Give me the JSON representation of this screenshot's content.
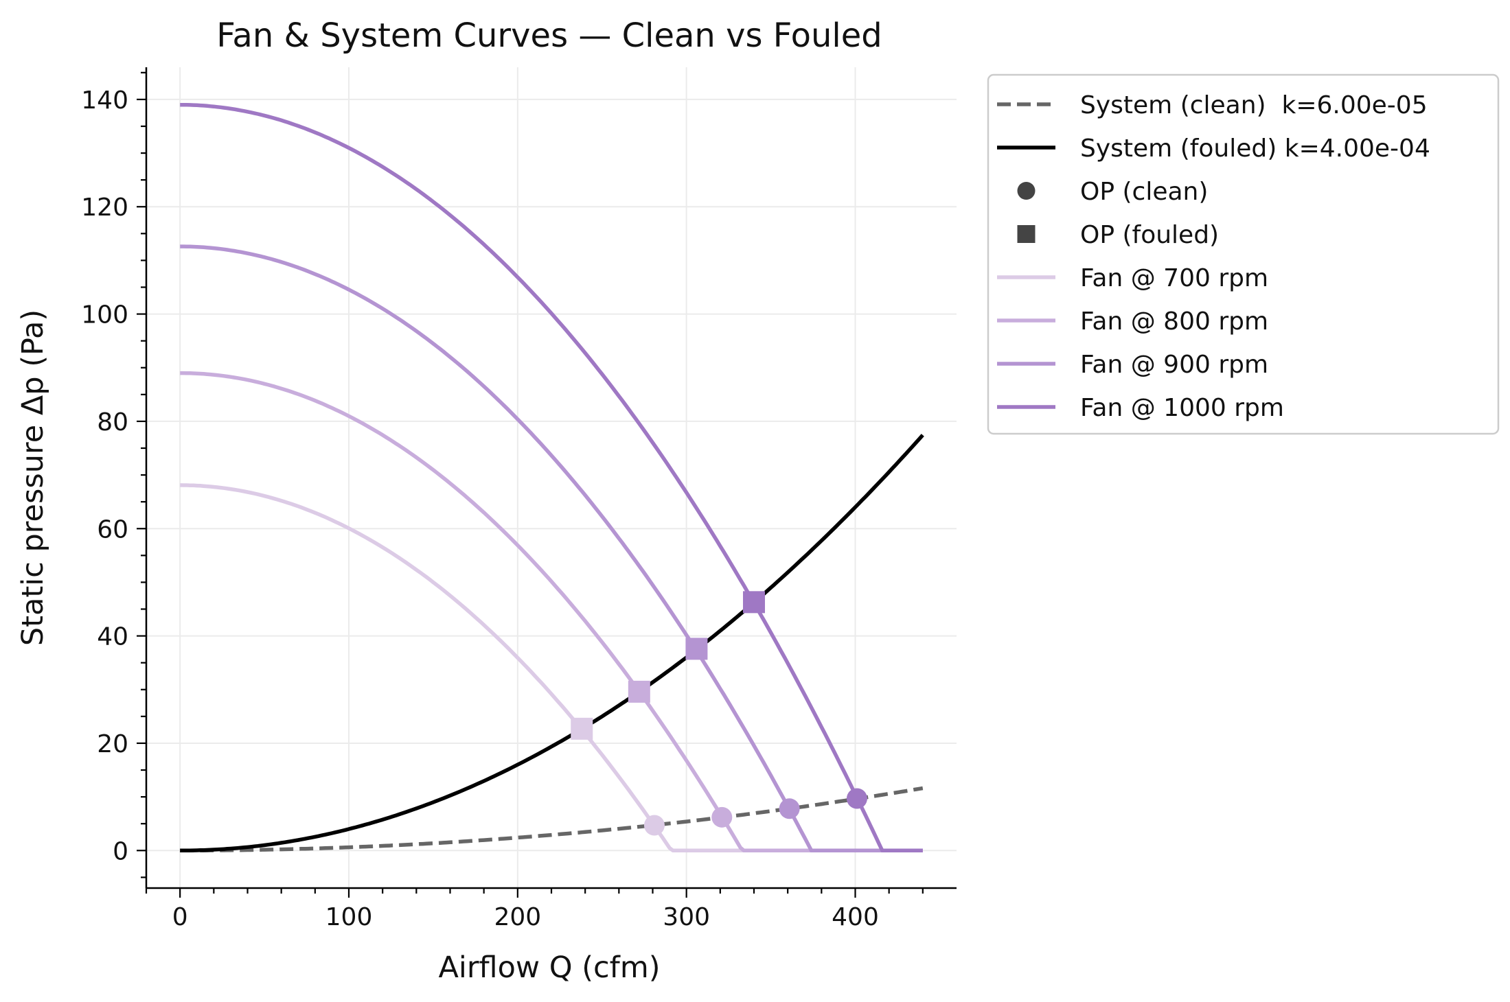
{
  "chart_data": {
    "type": "line",
    "title": "Fan & System Curves — Clean vs Fouled",
    "xlabel": "Airflow Q (cfm)",
    "ylabel": "Static pressure Δp (Pa)",
    "xlim": [
      -20,
      460
    ],
    "ylim": [
      -7,
      146
    ],
    "xticks": [
      0,
      100,
      200,
      300,
      400
    ],
    "yticks": [
      0,
      20,
      40,
      60,
      80,
      100,
      120,
      140
    ],
    "grid": true,
    "legend_position": "outside-top-right",
    "system_curves": [
      {
        "name": "System (clean)  k=6.00e-05",
        "k": 6e-05,
        "style": "dashed",
        "color": "#666666"
      },
      {
        "name": "System (fouled) k=4.00e-04",
        "k": 0.0004,
        "style": "solid",
        "color": "#000000"
      }
    ],
    "fan_curves": [
      {
        "name": "Fan @ 700 rpm",
        "rpm": 700,
        "shutoff_pressure": 68.1,
        "free_delivery": 291,
        "color": "#dccbe6"
      },
      {
        "name": "Fan @ 800 rpm",
        "rpm": 800,
        "shutoff_pressure": 89.0,
        "free_delivery": 333,
        "color": "#c8addc"
      },
      {
        "name": "Fan @ 900 rpm",
        "rpm": 900,
        "shutoff_pressure": 112.6,
        "free_delivery": 374,
        "color": "#b494d2"
      },
      {
        "name": "Fan @ 1000 rpm",
        "rpm": 1000,
        "shutoff_pressure": 139.0,
        "free_delivery": 416,
        "color": "#9f78c4"
      }
    ],
    "fan_curve_x_max": 440,
    "operating_points_clean": [
      {
        "rpm": 700,
        "x": 281,
        "y": 4.7
      },
      {
        "rpm": 800,
        "x": 321,
        "y": 6.2
      },
      {
        "rpm": 900,
        "x": 361,
        "y": 7.8
      },
      {
        "rpm": 1000,
        "x": 401,
        "y": 9.7
      }
    ],
    "operating_points_fouled": [
      {
        "rpm": 700,
        "x": 238,
        "y": 22.7
      },
      {
        "rpm": 800,
        "x": 272,
        "y": 29.6
      },
      {
        "rpm": 900,
        "x": 306,
        "y": 37.6
      },
      {
        "rpm": 1000,
        "x": 340,
        "y": 46.3
      }
    ],
    "legend": [
      {
        "label": "System (clean)  k=6.00e-05",
        "kind": "dashed-line",
        "color": "#666666"
      },
      {
        "label": "System (fouled) k=4.00e-04",
        "kind": "line",
        "color": "#000000"
      },
      {
        "label": "OP (clean)",
        "kind": "circle",
        "color": "#444444"
      },
      {
        "label": "OP (fouled)",
        "kind": "square",
        "color": "#444444"
      },
      {
        "label": "Fan @ 700 rpm",
        "kind": "line",
        "color": "#dccbe6"
      },
      {
        "label": "Fan @ 800 rpm",
        "kind": "line",
        "color": "#c8addc"
      },
      {
        "label": "Fan @ 900 rpm",
        "kind": "line",
        "color": "#b494d2"
      },
      {
        "label": "Fan @ 1000 rpm",
        "kind": "line",
        "color": "#9f78c4"
      }
    ]
  }
}
